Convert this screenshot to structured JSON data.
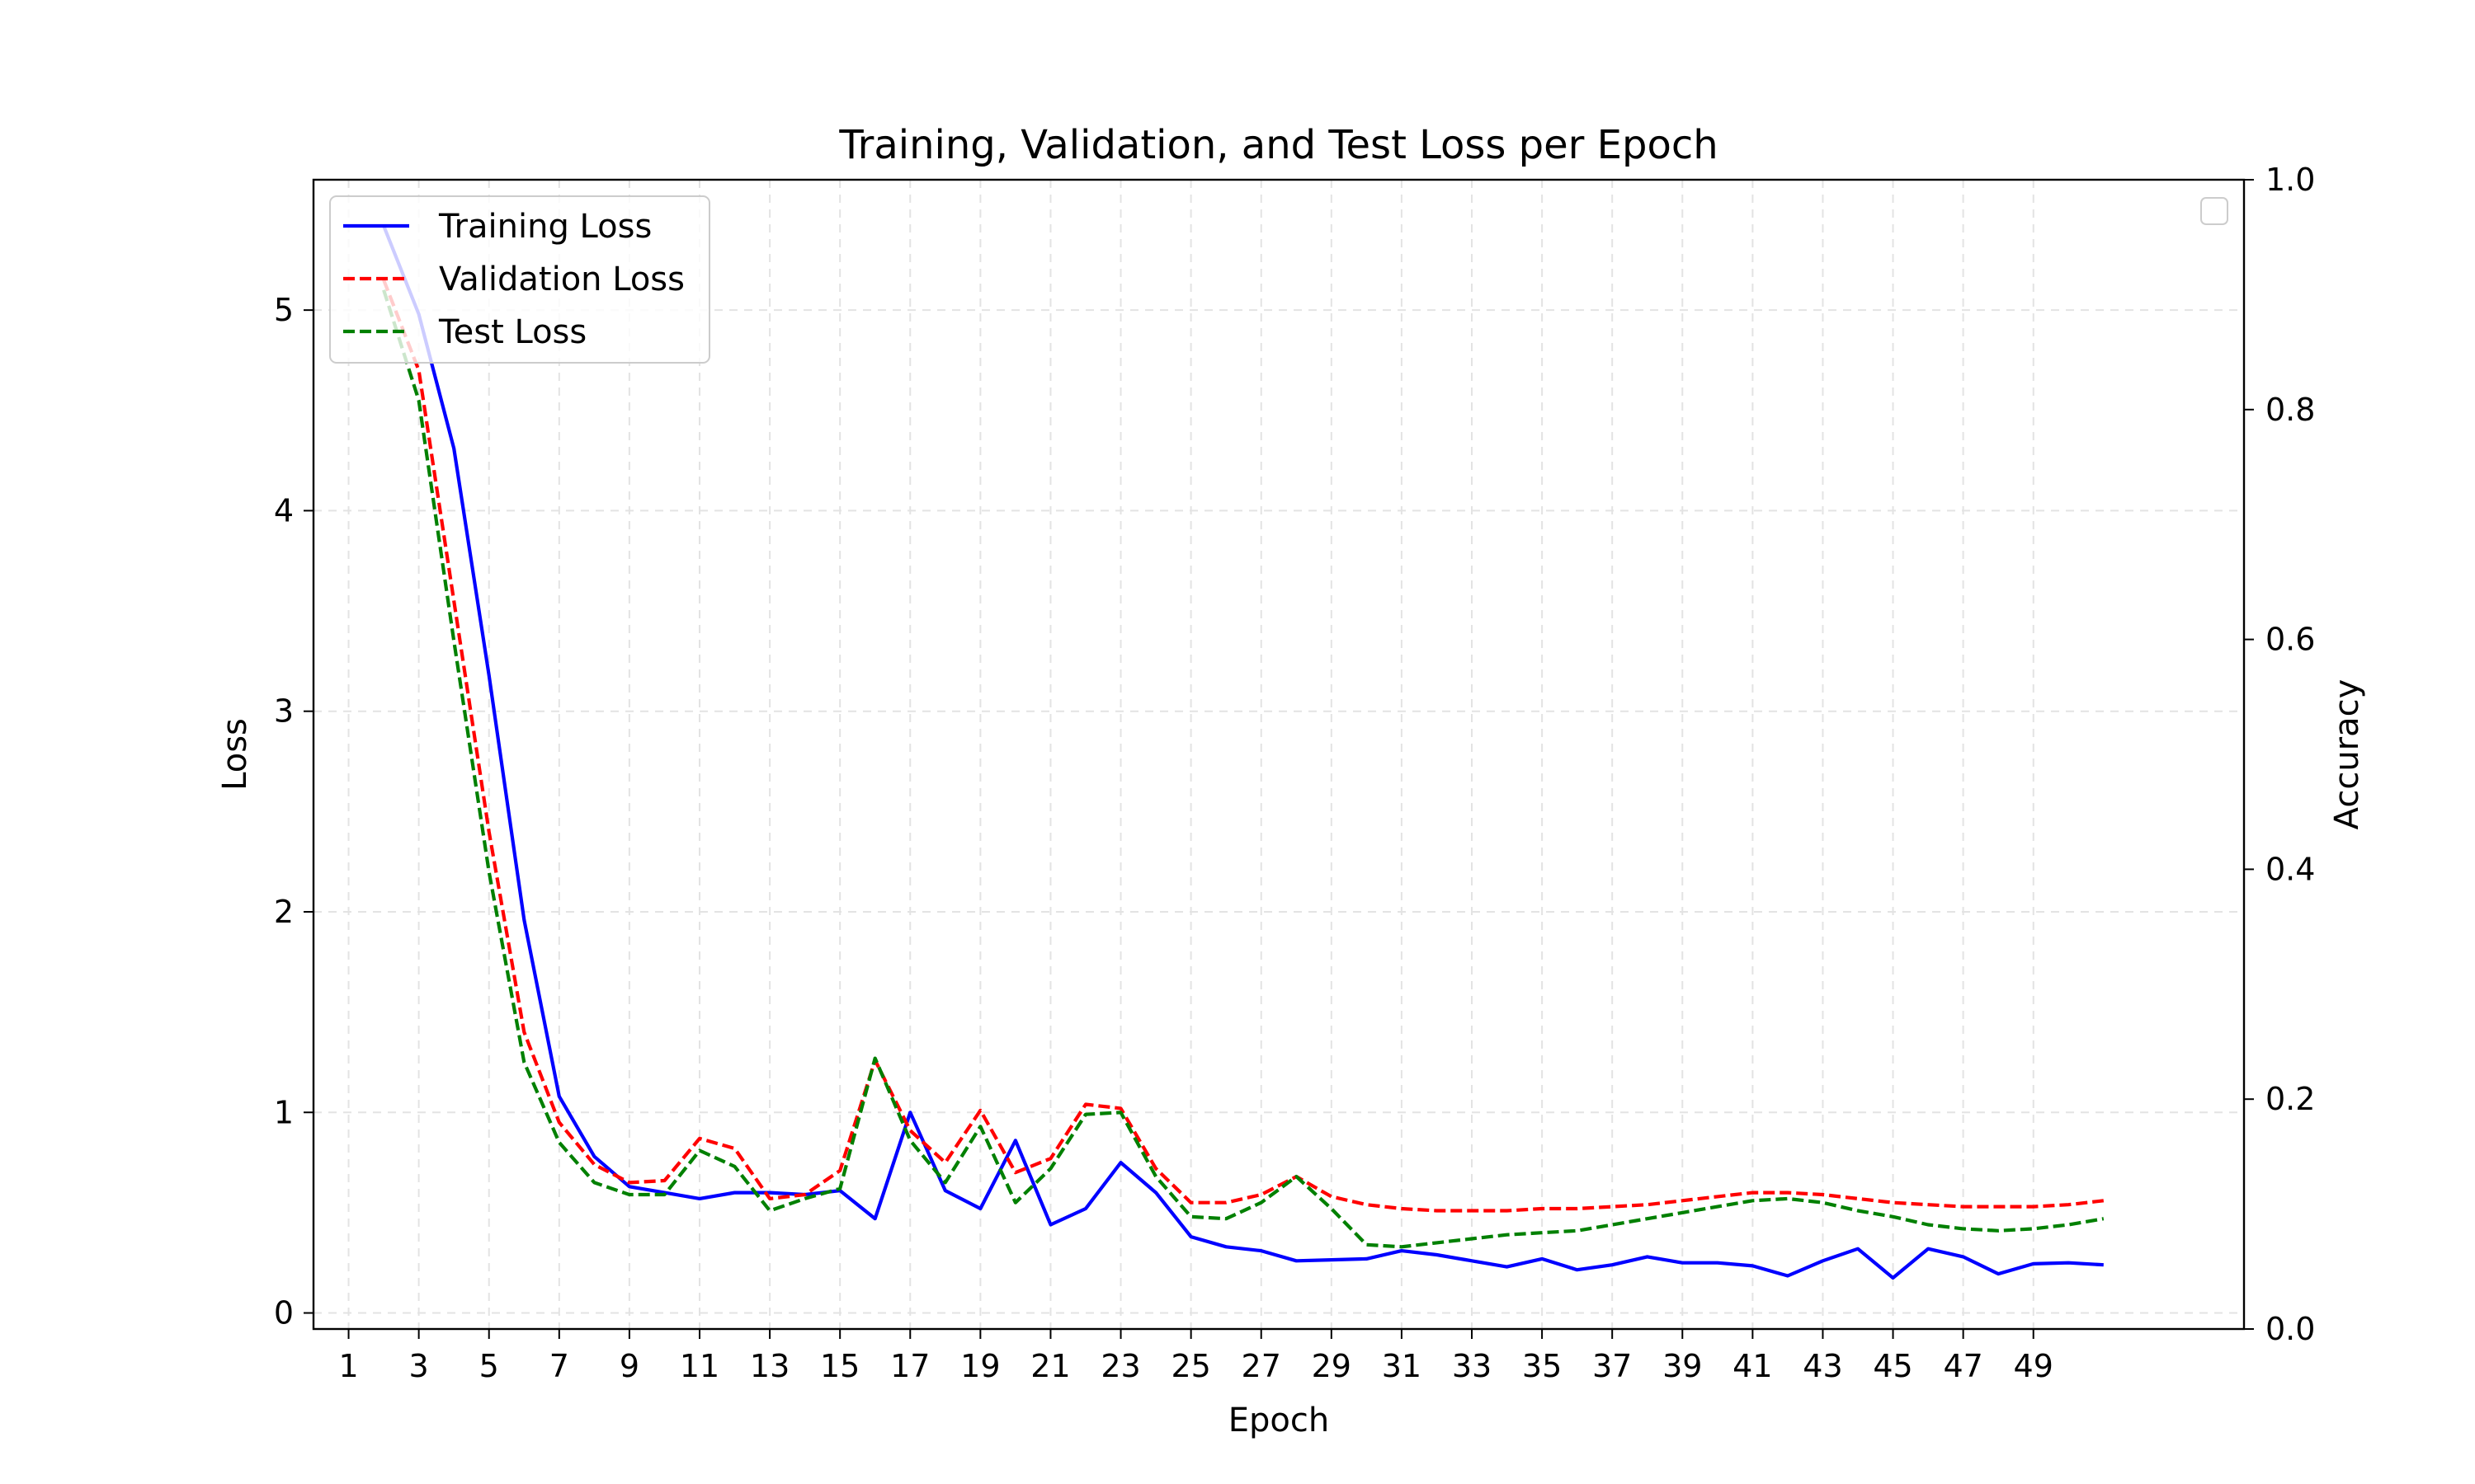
{
  "chart_data": {
    "type": "line",
    "title": "Training, Validation, and Test Loss per Epoch",
    "xlabel": "Epoch",
    "ylabel": "Loss",
    "y2label": "Accuracy",
    "xlim": [
      0,
      55
    ],
    "ylim": [
      -0.08,
      5.65
    ],
    "y2lim": [
      0.0,
      1.0
    ],
    "xticks": [
      1,
      3,
      5,
      7,
      9,
      11,
      13,
      15,
      17,
      19,
      21,
      23,
      25,
      27,
      29,
      31,
      33,
      35,
      37,
      39,
      41,
      43,
      45,
      47,
      49
    ],
    "yticks": [
      0,
      1,
      2,
      3,
      4,
      5
    ],
    "y2ticks": [
      "0.0",
      "0.2",
      "0.4",
      "0.6",
      "0.8",
      "1.0"
    ],
    "grid": true,
    "legend_position": "upper-left",
    "secondary_legend": "upper-right (empty)",
    "x": [
      2,
      3,
      4,
      5,
      6,
      7,
      8,
      9,
      10,
      11,
      12,
      13,
      14,
      15,
      16,
      17,
      18,
      19,
      20,
      21,
      22,
      23,
      24,
      25,
      26,
      27,
      28,
      29,
      30,
      31,
      32,
      33,
      34,
      35,
      36,
      37,
      38,
      39,
      40,
      41,
      42,
      43,
      44,
      45,
      46,
      47,
      48,
      49,
      50,
      51
    ],
    "series": [
      {
        "name": "Training Loss",
        "color": "#0000ff",
        "style": "solid",
        "values": [
          5.42,
          4.98,
          4.31,
          3.18,
          1.96,
          1.08,
          0.78,
          0.63,
          0.6,
          0.57,
          0.6,
          0.6,
          0.59,
          0.61,
          0.47,
          1.0,
          0.61,
          0.52,
          0.86,
          0.44,
          0.52,
          0.75,
          0.6,
          0.38,
          0.33,
          0.31,
          0.26,
          0.265,
          0.27,
          0.31,
          0.29,
          0.26,
          0.23,
          0.27,
          0.215,
          0.24,
          0.28,
          0.25,
          0.25,
          0.235,
          0.185,
          0.26,
          0.32,
          0.175,
          0.32,
          0.28,
          0.195,
          0.245,
          0.25,
          0.24
        ]
      },
      {
        "name": "Validation Loss",
        "color": "#ff0000",
        "style": "dashed",
        "values": [
          5.15,
          4.7,
          3.55,
          2.4,
          1.4,
          0.95,
          0.74,
          0.65,
          0.66,
          0.87,
          0.82,
          0.57,
          0.59,
          0.71,
          1.26,
          0.91,
          0.75,
          1.01,
          0.7,
          0.77,
          1.04,
          1.02,
          0.72,
          0.55,
          0.55,
          0.59,
          0.68,
          0.58,
          0.54,
          0.52,
          0.51,
          0.51,
          0.51,
          0.52,
          0.52,
          0.53,
          0.54,
          0.56,
          0.58,
          0.6,
          0.6,
          0.59,
          0.57,
          0.55,
          0.54,
          0.53,
          0.53,
          0.53,
          0.54,
          0.56
        ]
      },
      {
        "name": "Test Loss",
        "color": "#008000",
        "style": "dashed",
        "values": [
          5.1,
          4.55,
          3.35,
          2.2,
          1.25,
          0.85,
          0.65,
          0.59,
          0.59,
          0.81,
          0.73,
          0.51,
          0.57,
          0.62,
          1.27,
          0.86,
          0.65,
          0.93,
          0.55,
          0.72,
          0.99,
          1.0,
          0.68,
          0.48,
          0.47,
          0.55,
          0.68,
          0.52,
          0.34,
          0.33,
          0.35,
          0.37,
          0.39,
          0.4,
          0.41,
          0.44,
          0.47,
          0.5,
          0.53,
          0.56,
          0.57,
          0.55,
          0.51,
          0.48,
          0.44,
          0.42,
          0.41,
          0.42,
          0.44,
          0.47
        ]
      }
    ]
  }
}
